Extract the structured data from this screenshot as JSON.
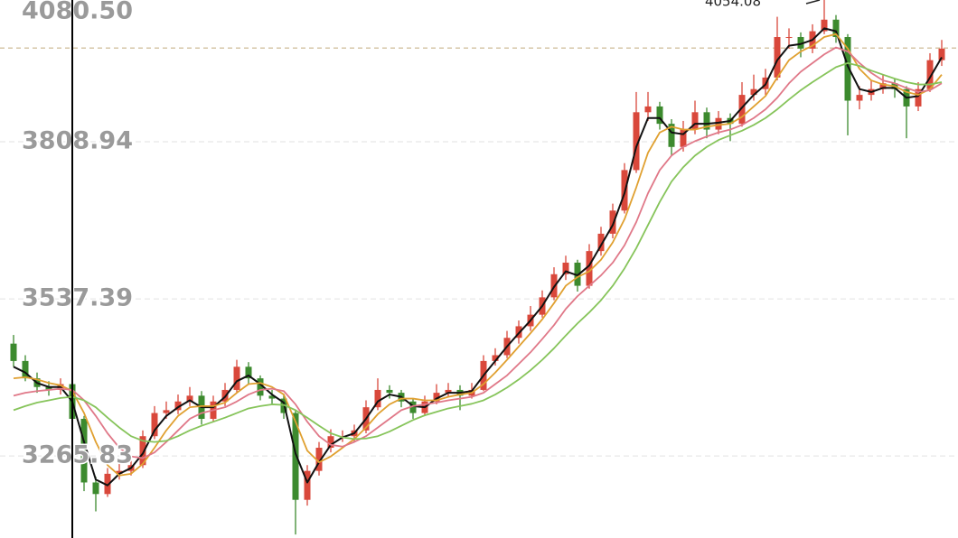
{
  "chart_data": {
    "type": "candlestick",
    "ylim": [
      3124,
      4054
    ],
    "yticks": [
      {
        "value": 4080.5,
        "label": "4080.50"
      },
      3808.94,
      3537.39,
      3265.83
    ],
    "grid": true,
    "up_color": "#d9483b",
    "down_color": "#3c8a2e",
    "ref_line": {
      "value": 3971,
      "color": "#c9b48a"
    },
    "crosshair_index": 5,
    "annotation": {
      "text": "4054.08",
      "index": 69
    },
    "ohlc": [
      [
        3460,
        3475,
        3420,
        3430
      ],
      [
        3430,
        3440,
        3395,
        3400
      ],
      [
        3400,
        3410,
        3375,
        3385
      ],
      [
        3385,
        3395,
        3370,
        3380
      ],
      [
        3380,
        3400,
        3372,
        3390
      ],
      [
        3390,
        3395,
        3320,
        3330
      ],
      [
        3330,
        3335,
        3205,
        3220
      ],
      [
        3220,
        3230,
        3170,
        3200
      ],
      [
        3200,
        3245,
        3195,
        3235
      ],
      [
        3235,
        3255,
        3225,
        3240
      ],
      [
        3240,
        3262,
        3232,
        3250
      ],
      [
        3250,
        3310,
        3245,
        3300
      ],
      [
        3300,
        3352,
        3295,
        3340
      ],
      [
        3340,
        3360,
        3330,
        3345
      ],
      [
        3345,
        3372,
        3338,
        3360
      ],
      [
        3360,
        3385,
        3352,
        3370
      ],
      [
        3370,
        3378,
        3320,
        3330
      ],
      [
        3330,
        3370,
        3325,
        3360
      ],
      [
        3360,
        3392,
        3352,
        3380
      ],
      [
        3380,
        3432,
        3375,
        3420
      ],
      [
        3420,
        3428,
        3390,
        3400
      ],
      [
        3400,
        3405,
        3362,
        3370
      ],
      [
        3370,
        3380,
        3355,
        3365
      ],
      [
        3365,
        3372,
        3330,
        3340
      ],
      [
        3340,
        3345,
        3130,
        3190
      ],
      [
        3190,
        3250,
        3180,
        3240
      ],
      [
        3240,
        3290,
        3232,
        3280
      ],
      [
        3280,
        3312,
        3272,
        3300
      ],
      [
        3300,
        3310,
        3290,
        3300
      ],
      [
        3300,
        3320,
        3290,
        3310
      ],
      [
        3310,
        3362,
        3305,
        3350
      ],
      [
        3350,
        3400,
        3345,
        3380
      ],
      [
        3380,
        3388,
        3365,
        3375
      ],
      [
        3375,
        3380,
        3350,
        3360
      ],
      [
        3360,
        3365,
        3330,
        3340
      ],
      [
        3340,
        3370,
        3335,
        3360
      ],
      [
        3360,
        3390,
        3355,
        3375
      ],
      [
        3375,
        3392,
        3368,
        3380
      ],
      [
        3380,
        3388,
        3345,
        3370
      ],
      [
        3370,
        3392,
        3365,
        3380
      ],
      [
        3380,
        3440,
        3378,
        3430
      ],
      [
        3430,
        3452,
        3422,
        3440
      ],
      [
        3440,
        3482,
        3435,
        3470
      ],
      [
        3470,
        3500,
        3460,
        3490
      ],
      [
        3490,
        3525,
        3482,
        3510
      ],
      [
        3510,
        3552,
        3505,
        3540
      ],
      [
        3540,
        3592,
        3535,
        3580
      ],
      [
        3580,
        3612,
        3570,
        3600
      ],
      [
        3600,
        3605,
        3550,
        3560
      ],
      [
        3560,
        3632,
        3555,
        3620
      ],
      [
        3620,
        3662,
        3612,
        3650
      ],
      [
        3650,
        3702,
        3642,
        3690
      ],
      [
        3690,
        3772,
        3685,
        3760
      ],
      [
        3760,
        3895,
        3755,
        3860
      ],
      [
        3860,
        3895,
        3845,
        3870
      ],
      [
        3870,
        3878,
        3830,
        3840
      ],
      [
        3840,
        3848,
        3785,
        3800
      ],
      [
        3800,
        3845,
        3792,
        3830
      ],
      [
        3830,
        3880,
        3822,
        3860
      ],
      [
        3860,
        3868,
        3815,
        3830
      ],
      [
        3830,
        3862,
        3822,
        3850
      ],
      [
        3850,
        3858,
        3810,
        3840
      ],
      [
        3840,
        3912,
        3835,
        3890
      ],
      [
        3890,
        3925,
        3880,
        3900
      ],
      [
        3900,
        3935,
        3890,
        3920
      ],
      [
        3920,
        4025,
        3915,
        3990
      ],
      [
        3990,
        4005,
        3970,
        3990
      ],
      [
        3990,
        3998,
        3955,
        3970
      ],
      [
        3970,
        4012,
        3962,
        4000
      ],
      [
        4000,
        4054.08,
        3995,
        4020
      ],
      [
        4020,
        4028,
        3980,
        3990
      ],
      [
        3990,
        3995,
        3820,
        3880
      ],
      [
        3880,
        3905,
        3865,
        3890
      ],
      [
        3890,
        3915,
        3880,
        3900
      ],
      [
        3900,
        3925,
        3892,
        3910
      ],
      [
        3910,
        3918,
        3885,
        3900
      ],
      [
        3900,
        3905,
        3815,
        3870
      ],
      [
        3870,
        3912,
        3862,
        3900
      ],
      [
        3900,
        3962,
        3895,
        3950
      ],
      [
        3950,
        3985,
        3940,
        3970
      ]
    ],
    "series": [
      {
        "color": "#111111",
        "values": [
          3420,
          3410,
          3392,
          3385,
          3385,
          3360,
          3290,
          3225,
          3215,
          3235,
          3245,
          3270,
          3310,
          3335,
          3350,
          3362,
          3350,
          3350,
          3368,
          3395,
          3405,
          3390,
          3372,
          3358,
          3270,
          3220,
          3255,
          3285,
          3298,
          3305,
          3330,
          3360,
          3372,
          3368,
          3352,
          3350,
          3365,
          3375,
          3375,
          3378,
          3405,
          3430,
          3455,
          3478,
          3500,
          3525,
          3558,
          3585,
          3578,
          3595,
          3630,
          3665,
          3720,
          3800,
          3850,
          3850,
          3825,
          3822,
          3840,
          3840,
          3842,
          3845,
          3868,
          3890,
          3908,
          3950,
          3975,
          3978,
          3985,
          4005,
          4000,
          3940,
          3900,
          3895,
          3902,
          3902,
          3885,
          3888,
          3920,
          3955
        ]
      },
      {
        "color": "#e0a030",
        "values": [
          3400,
          3402,
          3398,
          3392,
          3388,
          3378,
          3340,
          3290,
          3250,
          3232,
          3235,
          3252,
          3280,
          3310,
          3335,
          3350,
          3352,
          3352,
          3358,
          3375,
          3390,
          3392,
          3385,
          3372,
          3325,
          3275,
          3255,
          3265,
          3280,
          3295,
          3315,
          3338,
          3355,
          3365,
          3365,
          3362,
          3362,
          3368,
          3372,
          3375,
          3390,
          3410,
          3432,
          3455,
          3478,
          3502,
          3530,
          3560,
          3575,
          3585,
          3605,
          3635,
          3675,
          3730,
          3790,
          3825,
          3835,
          3830,
          3830,
          3835,
          3838,
          3840,
          3852,
          3870,
          3888,
          3920,
          3950,
          3965,
          3975,
          3990,
          3995,
          3970,
          3935,
          3915,
          3908,
          3905,
          3895,
          3890,
          3900,
          3925
        ]
      },
      {
        "color": "#e07888",
        "values": [
          3370,
          3375,
          3378,
          3380,
          3382,
          3380,
          3362,
          3335,
          3305,
          3280,
          3265,
          3262,
          3272,
          3290,
          3310,
          3330,
          3340,
          3345,
          3350,
          3360,
          3372,
          3380,
          3382,
          3378,
          3355,
          3325,
          3300,
          3285,
          3282,
          3290,
          3300,
          3315,
          3330,
          3345,
          3352,
          3355,
          3358,
          3362,
          3365,
          3368,
          3375,
          3390,
          3405,
          3425,
          3445,
          3468,
          3492,
          3520,
          3542,
          3560,
          3578,
          3600,
          3630,
          3670,
          3720,
          3760,
          3785,
          3800,
          3810,
          3818,
          3825,
          3830,
          3838,
          3850,
          3865,
          3885,
          3910,
          3930,
          3945,
          3960,
          3972,
          3965,
          3945,
          3928,
          3915,
          3910,
          3902,
          3895,
          3898,
          3910
        ]
      },
      {
        "color": "#86c45a",
        "values": [
          3345,
          3352,
          3358,
          3362,
          3366,
          3368,
          3362,
          3350,
          3332,
          3315,
          3300,
          3292,
          3290,
          3292,
          3300,
          3310,
          3318,
          3325,
          3332,
          3340,
          3348,
          3352,
          3355,
          3354,
          3345,
          3332,
          3318,
          3305,
          3298,
          3295,
          3296,
          3300,
          3308,
          3318,
          3328,
          3336,
          3342,
          3348,
          3352,
          3356,
          3362,
          3372,
          3384,
          3398,
          3414,
          3432,
          3452,
          3474,
          3495,
          3514,
          3535,
          3560,
          3590,
          3625,
          3665,
          3705,
          3740,
          3765,
          3785,
          3800,
          3812,
          3820,
          3828,
          3838,
          3850,
          3865,
          3882,
          3898,
          3912,
          3925,
          3938,
          3945,
          3940,
          3932,
          3925,
          3918,
          3912,
          3908,
          3908,
          3912
        ]
      }
    ]
  }
}
